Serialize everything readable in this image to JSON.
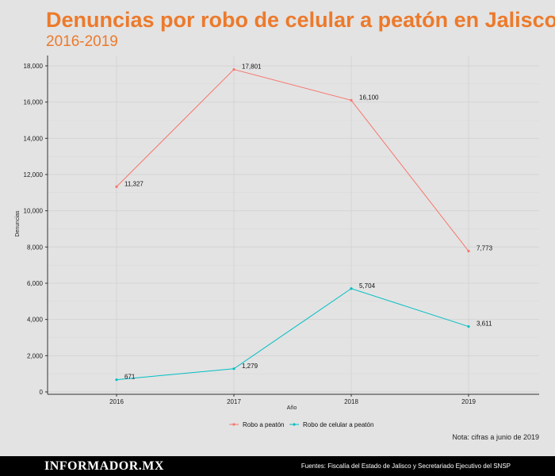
{
  "header": {
    "title": "Denuncias por robo de celular a peatón en Jalisco",
    "subtitle": "2016-2019"
  },
  "chart_data": {
    "type": "line",
    "x": [
      "2016",
      "2017",
      "2018",
      "2019"
    ],
    "series": [
      {
        "name": "Robo a peatón",
        "color": "#f8766d",
        "values": [
          11327,
          17801,
          16100,
          7773
        ],
        "labels": [
          "11,327",
          "17,801",
          "16,100",
          "7,773"
        ]
      },
      {
        "name": "Robo de celular a peatón",
        "color": "#00bfc4",
        "values": [
          671,
          1279,
          5704,
          3611
        ],
        "labels": [
          "671",
          "1,279",
          "5,704",
          "3,611"
        ]
      }
    ],
    "xlabel": "Año",
    "ylabel": "Denuncias",
    "ylim": [
      0,
      18000
    ],
    "yticks": [
      0,
      2000,
      4000,
      6000,
      8000,
      10000,
      12000,
      14000,
      16000,
      18000
    ],
    "ytick_labels": [
      "0",
      "2,000",
      "4,000",
      "6,000",
      "8,000",
      "10,000",
      "12,000",
      "14,000",
      "16,000",
      "18,000"
    ],
    "grid": true,
    "legend_position": "bottom"
  },
  "note": "Nota: cifras a junio de 2019",
  "footer": {
    "brand": "INFORMADOR.MX",
    "sources": "Fuentes: Fiscalía del Estado de Jalisco y Secretariado Ejecutivo del SNSP"
  }
}
